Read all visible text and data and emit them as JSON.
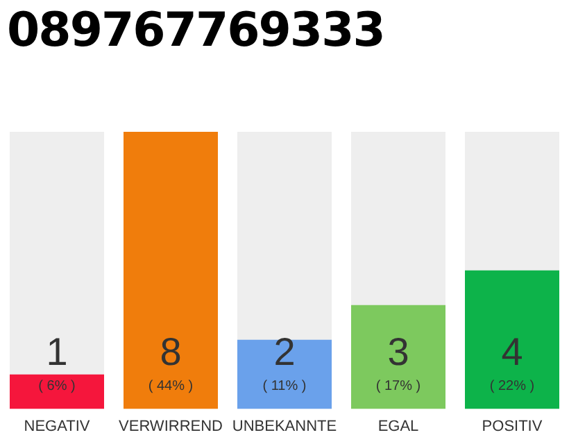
{
  "chart_data": {
    "type": "bar",
    "title": "089767769333",
    "categories": [
      "NEGATIV",
      "VERWIRREND",
      "UNBEKANNTE",
      "EGAL",
      "POSITIV"
    ],
    "values": [
      1,
      8,
      2,
      3,
      4
    ],
    "colors": [
      "#f5163c",
      "#f07d0c",
      "#6aa1eb",
      "#7dc95e",
      "#0db34a"
    ],
    "value_labels": [
      "1\n( 6% )",
      "8\n( 44% )",
      "2\n( 11% )",
      "3\n( 17% )",
      "4\n( 22% )"
    ],
    "tick_labels": "x",
    "grid": false,
    "legend": false
  }
}
